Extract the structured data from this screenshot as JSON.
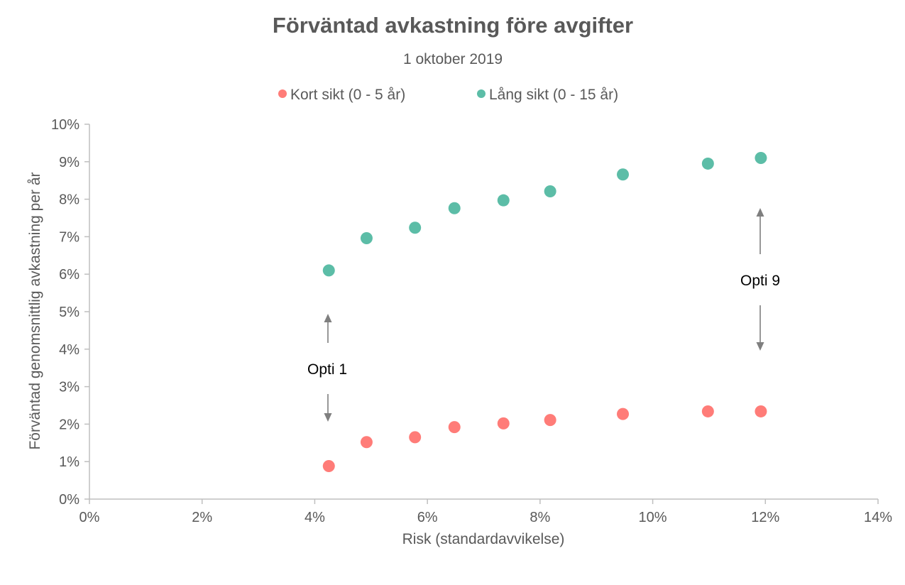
{
  "chart_data": {
    "type": "scatter",
    "title": "Förväntad avkastning före avgifter",
    "subtitle": "1 oktober 2019",
    "xlabel": "Risk (standardavvikelse)",
    "ylabel": "Förväntad genomsnittlig avkastning per år",
    "xlim": [
      0,
      14
    ],
    "ylim": [
      0,
      10
    ],
    "x_ticks": [
      0,
      2,
      4,
      6,
      8,
      10,
      12,
      14
    ],
    "x_tick_labels": [
      "0%",
      "2%",
      "4%",
      "6%",
      "8%",
      "10%",
      "12%",
      "14%"
    ],
    "y_ticks": [
      0,
      1,
      2,
      3,
      4,
      5,
      6,
      7,
      8,
      9,
      10
    ],
    "y_tick_labels": [
      "0%",
      "1%",
      "2%",
      "3%",
      "4%",
      "5%",
      "6%",
      "7%",
      "8%",
      "9%",
      "10%"
    ],
    "grid": false,
    "legend_position": "top",
    "series": [
      {
        "name": "Kort sikt (0 - 5 år)",
        "color": "#ff7c78",
        "x": [
          4.25,
          4.92,
          5.78,
          6.48,
          7.35,
          8.18,
          9.47,
          10.98,
          11.92
        ],
        "y": [
          0.88,
          1.52,
          1.65,
          1.92,
          2.02,
          2.11,
          2.27,
          2.34,
          2.34
        ]
      },
      {
        "name": "Lång sikt (0 - 15 år)",
        "color": "#5cbda7",
        "x": [
          4.25,
          4.92,
          5.78,
          6.48,
          7.35,
          8.18,
          9.47,
          10.98,
          11.92
        ],
        "y": [
          6.1,
          6.96,
          7.24,
          7.76,
          7.97,
          8.21,
          8.66,
          8.95,
          9.1
        ]
      }
    ],
    "annotations": [
      {
        "text": "Opti 1"
      },
      {
        "text": "Opti 9"
      }
    ]
  }
}
